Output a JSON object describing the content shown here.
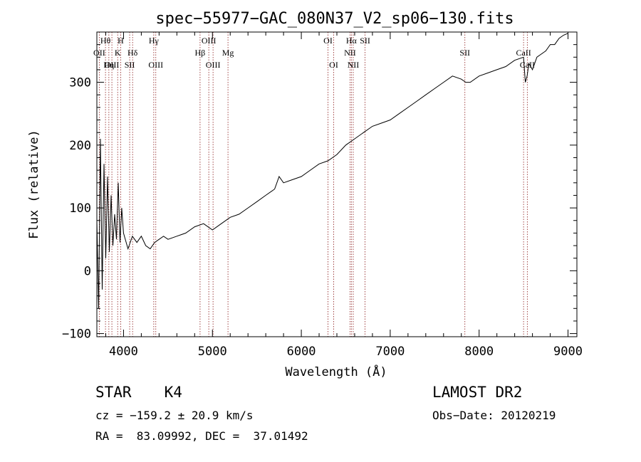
{
  "chart_data": {
    "type": "line",
    "title": "spec−55977−GAC_080N37_V2_sp06−130.fits",
    "xlabel": "Wavelength (Å)",
    "ylabel": "Flux (relative)",
    "xlim": [
      3700,
      9100
    ],
    "ylim": [
      -105,
      380
    ],
    "xticks": [
      4000,
      5000,
      6000,
      7000,
      8000,
      9000
    ],
    "yticks": [
      -100,
      0,
      100,
      200,
      300
    ],
    "grid": false,
    "series": [
      {
        "x": [
          3700,
          3720,
          3740,
          3760,
          3780,
          3800,
          3820,
          3840,
          3860,
          3880,
          3900,
          3920,
          3940,
          3960,
          3980,
          4000,
          4050,
          4100,
          4150,
          4200,
          4250,
          4300,
          4350,
          4400,
          4450,
          4500,
          4600,
          4700,
          4800,
          4900,
          5000,
          5100,
          5200,
          5300,
          5400,
          5500,
          5600,
          5700,
          5750,
          5800,
          5900,
          6000,
          6100,
          6200,
          6300,
          6400,
          6500,
          6600,
          6700,
          6800,
          6900,
          7000,
          7100,
          7200,
          7300,
          7400,
          7500,
          7600,
          7700,
          7800,
          7850,
          7900,
          8000,
          8100,
          8200,
          8300,
          8400,
          8500,
          8520,
          8540,
          8560,
          8600,
          8650,
          8700,
          8750,
          8800,
          8850,
          8900,
          8950,
          9000
        ],
        "y": [
          80,
          -60,
          210,
          -30,
          170,
          20,
          150,
          30,
          120,
          40,
          90,
          50,
          140,
          45,
          100,
          60,
          35,
          55,
          45,
          55,
          40,
          35,
          45,
          50,
          55,
          50,
          55,
          60,
          70,
          75,
          65,
          75,
          85,
          90,
          100,
          110,
          120,
          130,
          150,
          140,
          145,
          150,
          160,
          170,
          175,
          185,
          200,
          210,
          220,
          230,
          235,
          240,
          250,
          260,
          270,
          280,
          290,
          300,
          310,
          305,
          300,
          300,
          310,
          315,
          320,
          325,
          335,
          340,
          300,
          310,
          330,
          320,
          340,
          345,
          350,
          360,
          360,
          370,
          375,
          378
        ]
      }
    ],
    "annotations": [
      {
        "label": "Hθ",
        "x": 3797,
        "row": 1
      },
      {
        "label": "OII",
        "x": 3727,
        "row": 2
      },
      {
        "label": "OIII",
        "x": 3869,
        "row": 3
      },
      {
        "label": "Hη",
        "x": 3835,
        "row": 3
      },
      {
        "label": "H",
        "x": 3968,
        "row": 1
      },
      {
        "label": "K",
        "x": 3934,
        "row": 2
      },
      {
        "label": "Hδ",
        "x": 4102,
        "row": 2
      },
      {
        "label": "SII",
        "x": 4069,
        "row": 3
      },
      {
        "label": "Hγ",
        "x": 4340,
        "row": 1
      },
      {
        "label": "OIII",
        "x": 4363,
        "row": 3
      },
      {
        "label": "OIII",
        "x": 4959,
        "row": 1
      },
      {
        "label": "Hβ",
        "x": 4861,
        "row": 2
      },
      {
        "label": "OIII",
        "x": 5007,
        "row": 3
      },
      {
        "label": "Mg",
        "x": 5175,
        "row": 2
      },
      {
        "label": "OI",
        "x": 6300,
        "row": 1
      },
      {
        "label": "OI",
        "x": 6364,
        "row": 3
      },
      {
        "label": "Hα",
        "x": 6563,
        "row": 1
      },
      {
        "label": "SII",
        "x": 6717,
        "row": 1
      },
      {
        "label": "NII",
        "x": 6548,
        "row": 2
      },
      {
        "label": "NII",
        "x": 6584,
        "row": 3
      },
      {
        "label": "SII",
        "x": 7840,
        "row": 2
      },
      {
        "label": "CaII",
        "x": 8500,
        "row": 2
      },
      {
        "label": "CaII",
        "x": 8542,
        "row": 3
      }
    ]
  },
  "info": {
    "class_label": "STAR",
    "subclass": "K4",
    "cz": "cz = −159.2 ± 20.9 km/s",
    "coords": "RA =  83.09992, DEC =  37.01492",
    "survey": "LAMOST DR2",
    "obs_date": "Obs−Date: 20120219"
  }
}
